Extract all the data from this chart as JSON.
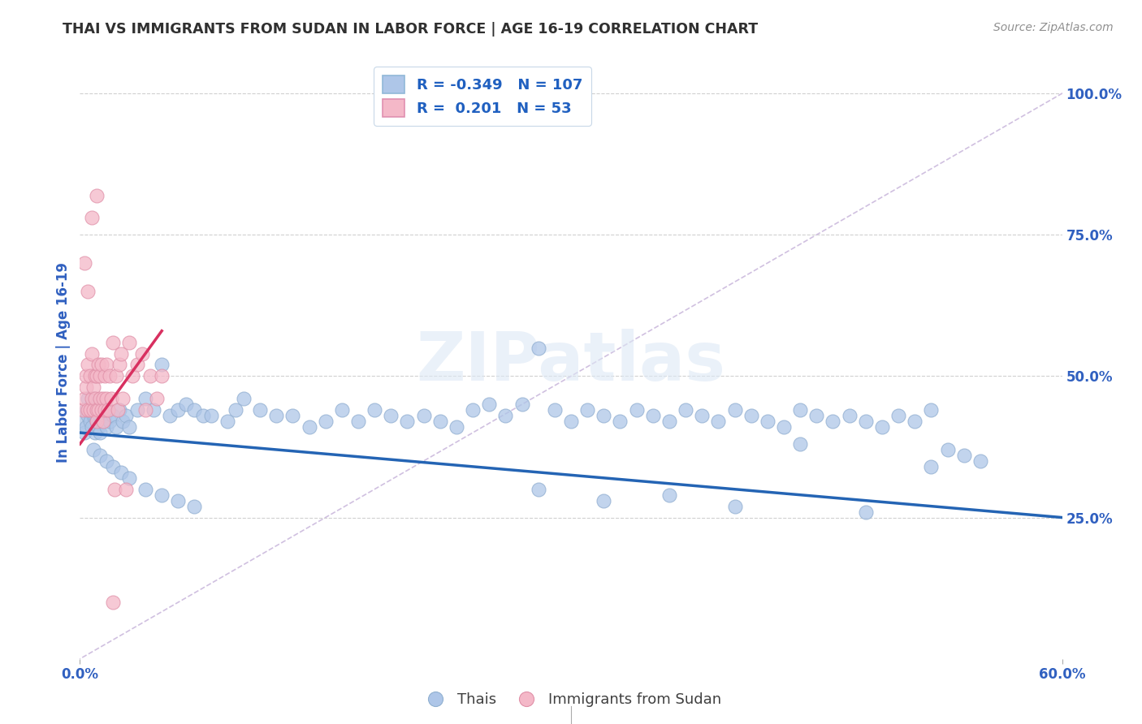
{
  "title": "THAI VS IMMIGRANTS FROM SUDAN IN LABOR FORCE | AGE 16-19 CORRELATION CHART",
  "source": "Source: ZipAtlas.com",
  "ylabel": "In Labor Force | Age 16-19",
  "xlim": [
    0.0,
    0.6
  ],
  "ylim": [
    0.0,
    1.05
  ],
  "r_blue": -0.349,
  "n_blue": 107,
  "r_pink": 0.201,
  "n_pink": 53,
  "blue_color": "#aec6e8",
  "pink_color": "#f4b8c8",
  "blue_line_color": "#2464b4",
  "pink_line_color": "#d83060",
  "diagonal_color": "#d0c0e0",
  "grid_color": "#d0d0d0",
  "title_color": "#303030",
  "source_color": "#909090",
  "axis_label_color": "#3060c0",
  "legend_r_color": "#2060c0",
  "blue_line_x_start": 0.0,
  "blue_line_x_end": 0.6,
  "blue_line_y_start": 0.4,
  "blue_line_y_end": 0.25,
  "pink_line_x_start": 0.0,
  "pink_line_x_end": 0.05,
  "pink_line_y_start": 0.38,
  "pink_line_y_end": 0.58,
  "blue_points_x": [
    0.002,
    0.003,
    0.004,
    0.004,
    0.005,
    0.005,
    0.006,
    0.006,
    0.007,
    0.007,
    0.008,
    0.008,
    0.009,
    0.009,
    0.01,
    0.01,
    0.011,
    0.011,
    0.012,
    0.012,
    0.013,
    0.014,
    0.015,
    0.016,
    0.017,
    0.018,
    0.02,
    0.022,
    0.024,
    0.026,
    0.028,
    0.03,
    0.035,
    0.04,
    0.045,
    0.05,
    0.055,
    0.06,
    0.065,
    0.07,
    0.075,
    0.08,
    0.09,
    0.095,
    0.1,
    0.11,
    0.12,
    0.13,
    0.14,
    0.15,
    0.16,
    0.17,
    0.18,
    0.19,
    0.2,
    0.21,
    0.22,
    0.23,
    0.24,
    0.25,
    0.26,
    0.27,
    0.28,
    0.29,
    0.3,
    0.31,
    0.32,
    0.33,
    0.34,
    0.35,
    0.36,
    0.37,
    0.38,
    0.39,
    0.4,
    0.41,
    0.42,
    0.43,
    0.44,
    0.45,
    0.46,
    0.47,
    0.48,
    0.49,
    0.5,
    0.51,
    0.52,
    0.53,
    0.54,
    0.55,
    0.28,
    0.32,
    0.36,
    0.4,
    0.44,
    0.48,
    0.52,
    0.008,
    0.012,
    0.016,
    0.02,
    0.025,
    0.03,
    0.04,
    0.05,
    0.06,
    0.07
  ],
  "blue_points_y": [
    0.42,
    0.4,
    0.44,
    0.41,
    0.43,
    0.46,
    0.44,
    0.42,
    0.45,
    0.41,
    0.43,
    0.46,
    0.4,
    0.43,
    0.42,
    0.45,
    0.44,
    0.41,
    0.43,
    0.4,
    0.42,
    0.44,
    0.43,
    0.41,
    0.44,
    0.42,
    0.43,
    0.41,
    0.44,
    0.42,
    0.43,
    0.41,
    0.44,
    0.46,
    0.44,
    0.52,
    0.43,
    0.44,
    0.45,
    0.44,
    0.43,
    0.43,
    0.42,
    0.44,
    0.46,
    0.44,
    0.43,
    0.43,
    0.41,
    0.42,
    0.44,
    0.42,
    0.44,
    0.43,
    0.42,
    0.43,
    0.42,
    0.41,
    0.44,
    0.45,
    0.43,
    0.45,
    0.55,
    0.44,
    0.42,
    0.44,
    0.43,
    0.42,
    0.44,
    0.43,
    0.42,
    0.44,
    0.43,
    0.42,
    0.44,
    0.43,
    0.42,
    0.41,
    0.44,
    0.43,
    0.42,
    0.43,
    0.42,
    0.41,
    0.43,
    0.42,
    0.44,
    0.37,
    0.36,
    0.35,
    0.3,
    0.28,
    0.29,
    0.27,
    0.38,
    0.26,
    0.34,
    0.37,
    0.36,
    0.35,
    0.34,
    0.33,
    0.32,
    0.3,
    0.29,
    0.28,
    0.27
  ],
  "pink_points_x": [
    0.002,
    0.003,
    0.004,
    0.004,
    0.005,
    0.005,
    0.006,
    0.006,
    0.007,
    0.007,
    0.008,
    0.008,
    0.009,
    0.009,
    0.01,
    0.01,
    0.01,
    0.011,
    0.011,
    0.012,
    0.012,
    0.013,
    0.013,
    0.014,
    0.014,
    0.015,
    0.015,
    0.016,
    0.016,
    0.017,
    0.018,
    0.019,
    0.02,
    0.021,
    0.022,
    0.023,
    0.024,
    0.025,
    0.026,
    0.028,
    0.03,
    0.032,
    0.035,
    0.038,
    0.04,
    0.043,
    0.047,
    0.05,
    0.003,
    0.005,
    0.007,
    0.01,
    0.02
  ],
  "pink_points_y": [
    0.44,
    0.46,
    0.48,
    0.5,
    0.44,
    0.52,
    0.44,
    0.5,
    0.46,
    0.54,
    0.48,
    0.44,
    0.5,
    0.46,
    0.44,
    0.5,
    0.42,
    0.52,
    0.44,
    0.5,
    0.46,
    0.44,
    0.52,
    0.46,
    0.42,
    0.5,
    0.44,
    0.52,
    0.46,
    0.44,
    0.5,
    0.46,
    0.56,
    0.3,
    0.5,
    0.44,
    0.52,
    0.54,
    0.46,
    0.3,
    0.56,
    0.5,
    0.52,
    0.54,
    0.44,
    0.5,
    0.46,
    0.5,
    0.7,
    0.65,
    0.78,
    0.82,
    0.1
  ]
}
